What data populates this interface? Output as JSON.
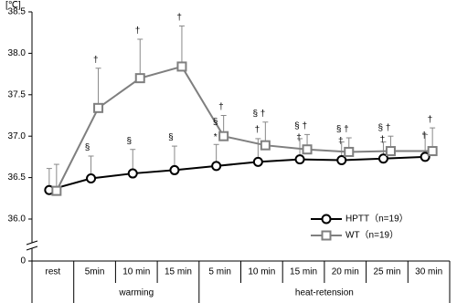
{
  "chart_data": {
    "type": "line",
    "y_axis_label": "[℃]",
    "categories": [
      "rest",
      "5min",
      "10 min",
      "15 min",
      "5 min",
      "10 min",
      "15 min",
      "20 min",
      "25 min",
      "30 min"
    ],
    "groups": [
      {
        "label": "warming",
        "span": [
          1,
          3
        ]
      },
      {
        "label": "heat-retension",
        "span": [
          4,
          9
        ]
      }
    ],
    "ylim": [
      36.0,
      38.5
    ],
    "yticks": [
      {
        "value": 36,
        "label": "36.0"
      },
      36.5,
      {
        "value": 37,
        "label": "37.0"
      },
      37.5,
      {
        "value": 38,
        "label": "38.0"
      },
      38.5
    ],
    "y_break_tick": 0,
    "legend": "lower right",
    "series": [
      {
        "name": "HPTT（n=19）",
        "color": "#000000",
        "marker": "circle",
        "values": [
          36.35,
          36.49,
          36.55,
          36.59,
          36.64,
          36.69,
          36.72,
          36.71,
          36.73,
          36.75
        ],
        "errors": [
          0.26,
          0.27,
          0.29,
          0.29,
          0.26,
          0.28,
          0.25,
          0.22,
          0.2,
          0.27
        ],
        "sig_top": [
          null,
          "§",
          "§",
          "§",
          null,
          null,
          null,
          null,
          null,
          null
        ]
      },
      {
        "name": "WT（n=19）",
        "color": "#7f7f7f",
        "marker": "square",
        "values": [
          36.34,
          37.34,
          37.7,
          37.84,
          37.0,
          36.89,
          36.84,
          36.81,
          36.82,
          36.82
        ],
        "errors": [
          0.32,
          0.48,
          0.47,
          0.49,
          0.25,
          0.28,
          0.18,
          0.17,
          0.18,
          0.28
        ],
        "sig_top": [
          null,
          "†",
          "†",
          "†",
          "†",
          "§ †",
          "§ †",
          "§ †",
          "§ †",
          "†"
        ],
        "sig_left": [
          null,
          null,
          null,
          null,
          "§",
          "†",
          "†",
          "†",
          "†",
          "†"
        ],
        "sig_marker": [
          null,
          null,
          null,
          null,
          "*",
          null,
          null,
          null,
          null,
          null
        ]
      }
    ]
  }
}
